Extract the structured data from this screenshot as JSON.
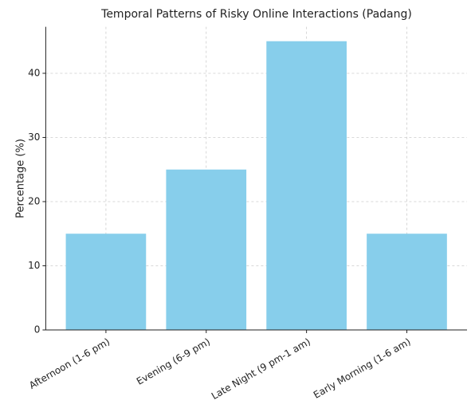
{
  "chart_data": {
    "type": "bar",
    "title": "Temporal Patterns of Risky Online Interactions (Padang)",
    "y_label": "Percentage (%)",
    "categories": [
      "Afternoon (1-6 pm)",
      "Evening (6-9 pm)",
      "Late Night (9 pm-1 am)",
      "Early Morning (1-6 am)"
    ],
    "values": [
      15,
      25,
      45,
      15
    ],
    "color": "#87ceeb",
    "ylim": [
      0,
      47.25
    ],
    "yticks": [
      0,
      10,
      20,
      30,
      40
    ],
    "grid": true
  }
}
